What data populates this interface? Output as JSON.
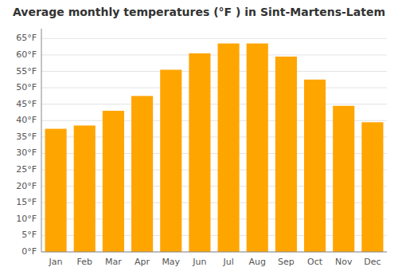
{
  "chart_data": {
    "type": "bar",
    "title": "Average monthly temperatures (°F ) in Sint-Martens-Latem",
    "categories": [
      "Jan",
      "Feb",
      "Mar",
      "Apr",
      "May",
      "Jun",
      "Jul",
      "Aug",
      "Sep",
      "Oct",
      "Nov",
      "Dec"
    ],
    "values": [
      37.5,
      38.5,
      43.0,
      47.5,
      55.5,
      60.5,
      63.5,
      63.5,
      59.5,
      52.5,
      44.5,
      39.5
    ],
    "color": "#FFA500",
    "ylim": [
      0,
      68
    ],
    "yticks": [
      {
        "value": 0,
        "label": "0°F"
      },
      {
        "value": 5,
        "label": "5°F"
      },
      {
        "value": 10,
        "label": "10°F"
      },
      {
        "value": 15,
        "label": "15°F"
      },
      {
        "value": 20,
        "label": "20°F"
      },
      {
        "value": 25,
        "label": "25°F"
      },
      {
        "value": 30,
        "label": "30°F"
      },
      {
        "value": 35,
        "label": "35°F"
      },
      {
        "value": 40,
        "label": "40°F"
      },
      {
        "value": 45,
        "label": "45°F"
      },
      {
        "value": 50,
        "label": "50°F"
      },
      {
        "value": 55,
        "label": "55°F"
      },
      {
        "value": 60,
        "label": "60°F"
      },
      {
        "value": 65,
        "label": "65°F"
      }
    ],
    "grid": true
  }
}
